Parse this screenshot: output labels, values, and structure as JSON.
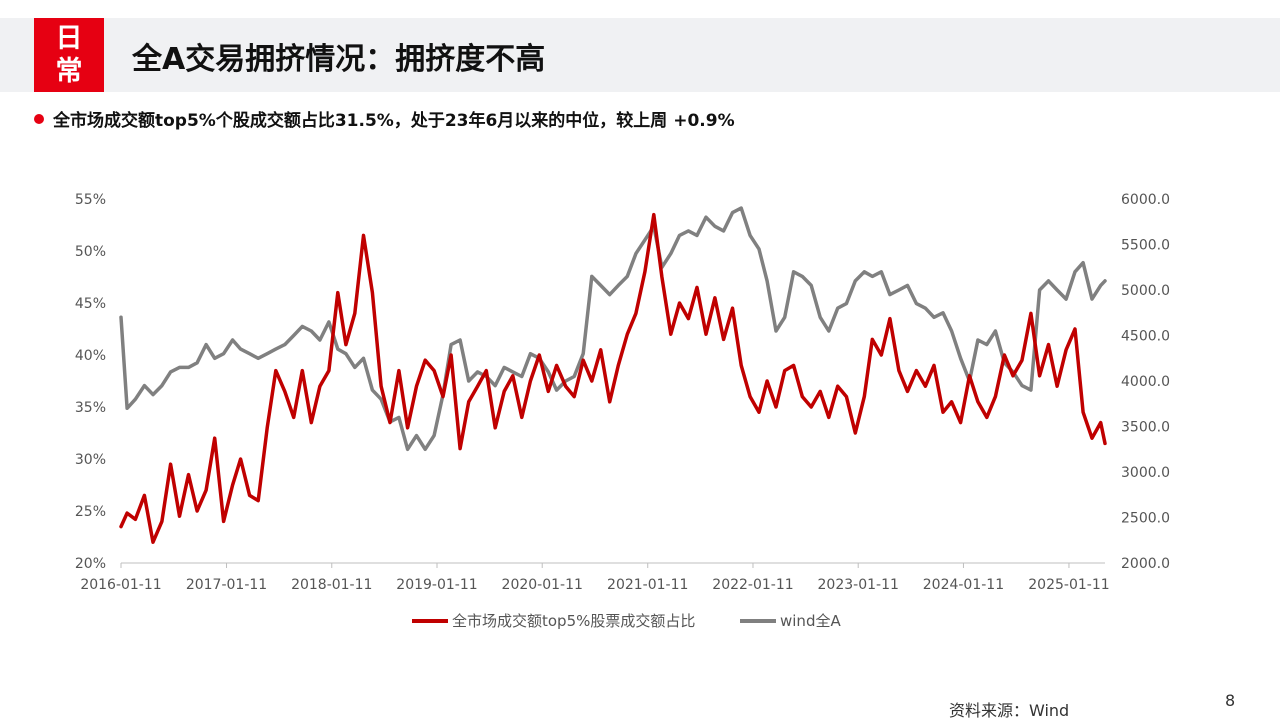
{
  "header": {
    "badge_line1": "日",
    "badge_line2": "常",
    "title": "全A交易拥挤情况：拥挤度不高"
  },
  "summary": "全市场成交额top5%个股成交额占比31.5%，处于23年6月以来的中位，较上周 +0.9%",
  "footer": {
    "source": "资料来源：Wind",
    "page_number": "8"
  },
  "colors": {
    "accent": "#e60012",
    "series_red": "#c00000",
    "series_gray": "#808080"
  },
  "chart_data": {
    "type": "line",
    "title": "",
    "x_tick_labels": [
      "2016-01-11",
      "2017-01-11",
      "2018-01-11",
      "2019-01-11",
      "2020-01-11",
      "2021-01-11",
      "2022-01-11",
      "2023-01-11",
      "2024-01-11",
      "2025-01-11"
    ],
    "x_range": [
      "2016-01-11",
      "2025-05-16"
    ],
    "left_axis": {
      "ticks": [
        "20%",
        "25%",
        "30%",
        "35%",
        "40%",
        "45%",
        "50%",
        "55%"
      ],
      "ylim": [
        20,
        55
      ]
    },
    "right_axis": {
      "ticks": [
        "2000.0",
        "2500.0",
        "3000.0",
        "3500.0",
        "4000.0",
        "4500.0",
        "5000.0",
        "5500.0",
        "6000.0"
      ],
      "ylim": [
        2000,
        6000
      ]
    },
    "legend_position": "bottom",
    "grid": false,
    "series": [
      {
        "name": "全市场成交额top5%股票成交额占比",
        "axis": "left",
        "color": "#c00000",
        "points": [
          [
            "2016-01-11",
            23.5
          ],
          [
            "2016-02-01",
            24.8
          ],
          [
            "2016-03-01",
            24.2
          ],
          [
            "2016-04-01",
            26.5
          ],
          [
            "2016-05-01",
            22.0
          ],
          [
            "2016-06-01",
            24.0
          ],
          [
            "2016-07-01",
            29.5
          ],
          [
            "2016-08-01",
            24.5
          ],
          [
            "2016-09-01",
            28.5
          ],
          [
            "2016-10-01",
            25.0
          ],
          [
            "2016-11-01",
            27.0
          ],
          [
            "2016-12-01",
            32.0
          ],
          [
            "2017-01-01",
            24.0
          ],
          [
            "2017-02-01",
            27.5
          ],
          [
            "2017-03-01",
            30.0
          ],
          [
            "2017-04-01",
            26.5
          ],
          [
            "2017-05-01",
            26.0
          ],
          [
            "2017-06-01",
            33.0
          ],
          [
            "2017-07-01",
            38.5
          ],
          [
            "2017-08-01",
            36.5
          ],
          [
            "2017-09-01",
            34.0
          ],
          [
            "2017-10-01",
            38.5
          ],
          [
            "2017-11-01",
            33.5
          ],
          [
            "2017-12-01",
            37.0
          ],
          [
            "2018-01-01",
            38.5
          ],
          [
            "2018-02-01",
            46.0
          ],
          [
            "2018-03-01",
            41.0
          ],
          [
            "2018-04-01",
            44.0
          ],
          [
            "2018-05-01",
            51.5
          ],
          [
            "2018-06-01",
            46.0
          ],
          [
            "2018-07-01",
            37.0
          ],
          [
            "2018-08-01",
            33.5
          ],
          [
            "2018-09-01",
            38.5
          ],
          [
            "2018-10-01",
            33.0
          ],
          [
            "2018-11-01",
            37.0
          ],
          [
            "2018-12-01",
            39.5
          ],
          [
            "2019-01-01",
            38.5
          ],
          [
            "2019-02-01",
            36.0
          ],
          [
            "2019-03-01",
            40.0
          ],
          [
            "2019-04-01",
            31.0
          ],
          [
            "2019-05-01",
            35.5
          ],
          [
            "2019-06-01",
            37.0
          ],
          [
            "2019-07-01",
            38.5
          ],
          [
            "2019-08-01",
            33.0
          ],
          [
            "2019-09-01",
            36.5
          ],
          [
            "2019-10-01",
            38.0
          ],
          [
            "2019-11-01",
            34.0
          ],
          [
            "2019-12-01",
            37.5
          ],
          [
            "2020-01-01",
            40.0
          ],
          [
            "2020-02-01",
            36.5
          ],
          [
            "2020-03-01",
            39.0
          ],
          [
            "2020-04-01",
            37.0
          ],
          [
            "2020-05-01",
            36.0
          ],
          [
            "2020-06-01",
            39.5
          ],
          [
            "2020-07-01",
            37.5
          ],
          [
            "2020-08-01",
            40.5
          ],
          [
            "2020-09-01",
            35.5
          ],
          [
            "2020-10-01",
            39.0
          ],
          [
            "2020-11-01",
            42.0
          ],
          [
            "2020-12-01",
            44.0
          ],
          [
            "2021-01-01",
            48.0
          ],
          [
            "2021-02-01",
            53.5
          ],
          [
            "2021-03-01",
            47.5
          ],
          [
            "2021-04-01",
            42.0
          ],
          [
            "2021-05-01",
            45.0
          ],
          [
            "2021-06-01",
            43.5
          ],
          [
            "2021-07-01",
            46.5
          ],
          [
            "2021-08-01",
            42.0
          ],
          [
            "2021-09-01",
            45.5
          ],
          [
            "2021-10-01",
            41.5
          ],
          [
            "2021-11-01",
            44.5
          ],
          [
            "2021-12-01",
            39.0
          ],
          [
            "2022-01-01",
            36.0
          ],
          [
            "2022-02-01",
            34.5
          ],
          [
            "2022-03-01",
            37.5
          ],
          [
            "2022-04-01",
            35.0
          ],
          [
            "2022-05-01",
            38.5
          ],
          [
            "2022-06-01",
            39.0
          ],
          [
            "2022-07-01",
            36.0
          ],
          [
            "2022-08-01",
            35.0
          ],
          [
            "2022-09-01",
            36.5
          ],
          [
            "2022-10-01",
            34.0
          ],
          [
            "2022-11-01",
            37.0
          ],
          [
            "2022-12-01",
            36.0
          ],
          [
            "2023-01-01",
            32.5
          ],
          [
            "2023-02-01",
            36.0
          ],
          [
            "2023-03-01",
            41.5
          ],
          [
            "2023-04-01",
            40.0
          ],
          [
            "2023-05-01",
            43.5
          ],
          [
            "2023-06-01",
            38.5
          ],
          [
            "2023-07-01",
            36.5
          ],
          [
            "2023-08-01",
            38.5
          ],
          [
            "2023-09-01",
            37.0
          ],
          [
            "2023-10-01",
            39.0
          ],
          [
            "2023-11-01",
            34.5
          ],
          [
            "2023-12-01",
            35.5
          ],
          [
            "2024-01-01",
            33.5
          ],
          [
            "2024-02-01",
            38.0
          ],
          [
            "2024-03-01",
            35.5
          ],
          [
            "2024-04-01",
            34.0
          ],
          [
            "2024-05-01",
            36.0
          ],
          [
            "2024-06-01",
            40.0
          ],
          [
            "2024-07-01",
            38.0
          ],
          [
            "2024-08-01",
            39.5
          ],
          [
            "2024-09-01",
            44.0
          ],
          [
            "2024-10-01",
            38.0
          ],
          [
            "2024-11-01",
            41.0
          ],
          [
            "2024-12-01",
            37.0
          ],
          [
            "2025-01-01",
            40.5
          ],
          [
            "2025-02-01",
            42.5
          ],
          [
            "2025-03-01",
            34.5
          ],
          [
            "2025-04-01",
            32.0
          ],
          [
            "2025-05-01",
            33.5
          ],
          [
            "2025-05-16",
            31.5
          ]
        ]
      },
      {
        "name": "wind全A",
        "axis": "right",
        "color": "#808080",
        "points": [
          [
            "2016-01-11",
            4700
          ],
          [
            "2016-02-01",
            3700
          ],
          [
            "2016-03-01",
            3800
          ],
          [
            "2016-04-01",
            3950
          ],
          [
            "2016-05-01",
            3850
          ],
          [
            "2016-06-01",
            3950
          ],
          [
            "2016-07-01",
            4100
          ],
          [
            "2016-08-01",
            4150
          ],
          [
            "2016-09-01",
            4150
          ],
          [
            "2016-10-01",
            4200
          ],
          [
            "2016-11-01",
            4400
          ],
          [
            "2016-12-01",
            4250
          ],
          [
            "2017-01-01",
            4300
          ],
          [
            "2017-02-01",
            4450
          ],
          [
            "2017-03-01",
            4350
          ],
          [
            "2017-04-01",
            4300
          ],
          [
            "2017-05-01",
            4250
          ],
          [
            "2017-06-01",
            4300
          ],
          [
            "2017-07-01",
            4350
          ],
          [
            "2017-08-01",
            4400
          ],
          [
            "2017-09-01",
            4500
          ],
          [
            "2017-10-01",
            4600
          ],
          [
            "2017-11-01",
            4550
          ],
          [
            "2017-12-01",
            4450
          ],
          [
            "2018-01-01",
            4650
          ],
          [
            "2018-02-01",
            4350
          ],
          [
            "2018-03-01",
            4300
          ],
          [
            "2018-04-01",
            4150
          ],
          [
            "2018-05-01",
            4250
          ],
          [
            "2018-06-01",
            3900
          ],
          [
            "2018-07-01",
            3800
          ],
          [
            "2018-08-01",
            3550
          ],
          [
            "2018-09-01",
            3600
          ],
          [
            "2018-10-01",
            3250
          ],
          [
            "2018-11-01",
            3400
          ],
          [
            "2018-12-01",
            3250
          ],
          [
            "2019-01-01",
            3400
          ],
          [
            "2019-02-01",
            3850
          ],
          [
            "2019-03-01",
            4400
          ],
          [
            "2019-04-01",
            4450
          ],
          [
            "2019-05-01",
            4000
          ],
          [
            "2019-06-01",
            4100
          ],
          [
            "2019-07-01",
            4050
          ],
          [
            "2019-08-01",
            3950
          ],
          [
            "2019-09-01",
            4150
          ],
          [
            "2019-10-01",
            4100
          ],
          [
            "2019-11-01",
            4050
          ],
          [
            "2019-12-01",
            4300
          ],
          [
            "2020-01-01",
            4250
          ],
          [
            "2020-02-01",
            4100
          ],
          [
            "2020-03-01",
            3900
          ],
          [
            "2020-04-01",
            4000
          ],
          [
            "2020-05-01",
            4050
          ],
          [
            "2020-06-01",
            4300
          ],
          [
            "2020-07-01",
            5150
          ],
          [
            "2020-08-01",
            5050
          ],
          [
            "2020-09-01",
            4950
          ],
          [
            "2020-10-01",
            5050
          ],
          [
            "2020-11-01",
            5150
          ],
          [
            "2020-12-01",
            5400
          ],
          [
            "2021-01-01",
            5550
          ],
          [
            "2021-02-01",
            5700
          ],
          [
            "2021-03-01",
            5250
          ],
          [
            "2021-04-01",
            5400
          ],
          [
            "2021-05-01",
            5600
          ],
          [
            "2021-06-01",
            5650
          ],
          [
            "2021-07-01",
            5600
          ],
          [
            "2021-08-01",
            5800
          ],
          [
            "2021-09-01",
            5700
          ],
          [
            "2021-10-01",
            5650
          ],
          [
            "2021-11-01",
            5850
          ],
          [
            "2021-12-01",
            5900
          ],
          [
            "2022-01-01",
            5600
          ],
          [
            "2022-02-01",
            5450
          ],
          [
            "2022-03-01",
            5100
          ],
          [
            "2022-04-01",
            4550
          ],
          [
            "2022-05-01",
            4700
          ],
          [
            "2022-06-01",
            5200
          ],
          [
            "2022-07-01",
            5150
          ],
          [
            "2022-08-01",
            5050
          ],
          [
            "2022-09-01",
            4700
          ],
          [
            "2022-10-01",
            4550
          ],
          [
            "2022-11-01",
            4800
          ],
          [
            "2022-12-01",
            4850
          ],
          [
            "2023-01-01",
            5100
          ],
          [
            "2023-02-01",
            5200
          ],
          [
            "2023-03-01",
            5150
          ],
          [
            "2023-04-01",
            5200
          ],
          [
            "2023-05-01",
            4950
          ],
          [
            "2023-06-01",
            5000
          ],
          [
            "2023-07-01",
            5050
          ],
          [
            "2023-08-01",
            4850
          ],
          [
            "2023-09-01",
            4800
          ],
          [
            "2023-10-01",
            4700
          ],
          [
            "2023-11-01",
            4750
          ],
          [
            "2023-12-01",
            4550
          ],
          [
            "2024-01-01",
            4250
          ],
          [
            "2024-02-01",
            4000
          ],
          [
            "2024-03-01",
            4450
          ],
          [
            "2024-04-01",
            4400
          ],
          [
            "2024-05-01",
            4550
          ],
          [
            "2024-06-01",
            4200
          ],
          [
            "2024-07-01",
            4100
          ],
          [
            "2024-08-01",
            3950
          ],
          [
            "2024-09-01",
            3900
          ],
          [
            "2024-10-01",
            5000
          ],
          [
            "2024-11-01",
            5100
          ],
          [
            "2024-12-01",
            5000
          ],
          [
            "2025-01-01",
            4900
          ],
          [
            "2025-02-01",
            5200
          ],
          [
            "2025-03-01",
            5300
          ],
          [
            "2025-04-01",
            4900
          ],
          [
            "2025-05-01",
            5050
          ],
          [
            "2025-05-16",
            5100
          ]
        ]
      }
    ]
  }
}
